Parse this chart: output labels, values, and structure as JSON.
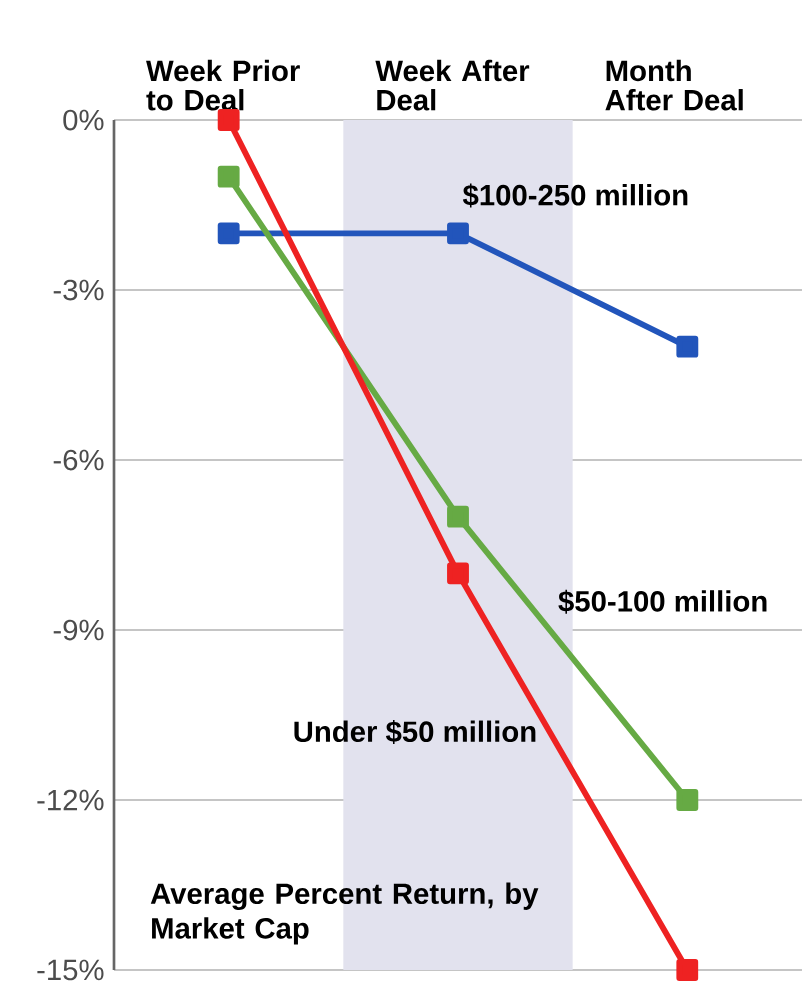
{
  "chart_data": {
    "type": "line",
    "title": "Average Percent Return, by Market Cap",
    "categories": [
      "Week Prior to Deal",
      "Week After Deal",
      "Month After Deal"
    ],
    "series": [
      {
        "name": "$100-250 million",
        "color": "#2255bb",
        "values": [
          -2,
          -2,
          -4
        ]
      },
      {
        "name": "$50-100 million",
        "color": "#66aa44",
        "values": [
          -1,
          -7,
          -12
        ]
      },
      {
        "name": "Under $50 million",
        "color": "#ee2222",
        "values": [
          0,
          -8,
          -15
        ]
      }
    ],
    "ylim": [
      -15,
      0
    ],
    "yticks": [
      {
        "value": 0,
        "label": "0%"
      },
      {
        "value": -3,
        "label": "-3%"
      },
      {
        "value": -6,
        "label": "-6%"
      },
      {
        "value": -9,
        "label": "-9%"
      },
      {
        "value": -12,
        "label": "-12%"
      },
      {
        "value": -15,
        "label": "-15%"
      }
    ],
    "bands": [
      {
        "axis": "x",
        "from": "Week After Deal",
        "to": "Week After Deal",
        "color": "#e2e2ee"
      }
    ],
    "grid": "y",
    "marker": "square",
    "line_style": "solid",
    "legend": false
  }
}
